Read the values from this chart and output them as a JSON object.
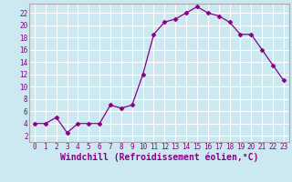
{
  "x": [
    0,
    1,
    2,
    3,
    4,
    5,
    6,
    7,
    8,
    9,
    10,
    11,
    12,
    13,
    14,
    15,
    16,
    17,
    18,
    19,
    20,
    21,
    22,
    23
  ],
  "y": [
    4,
    4,
    5,
    2.5,
    4,
    4,
    4,
    7,
    6.5,
    7,
    12,
    18.5,
    20.5,
    21,
    22,
    23,
    22,
    21.5,
    20.5,
    18.5,
    18.5,
    16,
    13.5,
    11
  ],
  "line_color": "#880088",
  "marker": "D",
  "markersize": 2.5,
  "linewidth": 0.9,
  "bg_color": "#cce8f0",
  "grid_color": "#ffffff",
  "xlabel": "Windchill (Refroidissement éolien,°C)",
  "xlim": [
    -0.5,
    23.5
  ],
  "ylim": [
    1,
    23.5
  ],
  "yticks": [
    2,
    4,
    6,
    8,
    10,
    12,
    14,
    16,
    18,
    20,
    22
  ],
  "xticks": [
    0,
    1,
    2,
    3,
    4,
    5,
    6,
    7,
    8,
    9,
    10,
    11,
    12,
    13,
    14,
    15,
    16,
    17,
    18,
    19,
    20,
    21,
    22,
    23
  ],
  "tick_fontsize": 5.5,
  "xlabel_fontsize": 7.0,
  "spine_color": "#aaaaaa"
}
